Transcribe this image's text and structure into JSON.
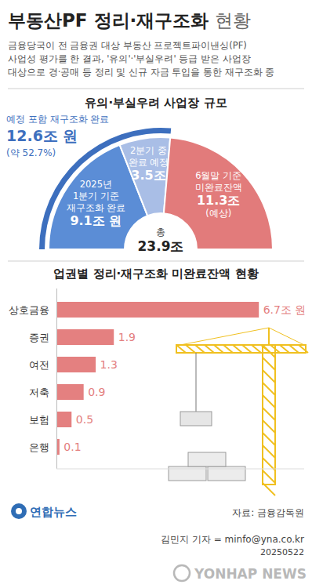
{
  "title": "부동산PF 정리·재구조화 현황",
  "subtitle": "금융당국이 전 금융권 대상 부동산 프로젝트파이낸싱(PF)\n사업성 평가를 한 결과, '유의'·'부실우려' 등급 받은 사업장\n대상으로 경·공매 등 정리 및 신규 자금 투입을 통한 재구조화 중",
  "chart_data": [
    {
      "type": "pie",
      "title": "유의·부실우려 사업장 규모",
      "categories": [
        "2025년\n1분기 기준\n재구조화 완료",
        "2분기 중\n완료 예정",
        "6월말 기준\n미완료잔액"
      ],
      "values": [
        9.1,
        3.5,
        11.3
      ],
      "value_labels": [
        "9.1조 원",
        "3.5조",
        "11.3조\n(예상)"
      ],
      "colors": [
        "#5b8dd6",
        "#a9bee6",
        "#e27b7b"
      ],
      "data_labels": true,
      "center_label": [
        "총",
        "23.9조"
      ],
      "annotations": [
        "예정 포함 재구조화 완료",
        "12.6조 원",
        "(약 52.7%)"
      ]
    },
    {
      "type": "bar",
      "orientation": "horizontal",
      "title": "업권별 정리·재구조화 미완료잔액 현황",
      "categories": [
        "상호금융",
        "증권",
        "여전",
        "저축",
        "보험",
        "은행"
      ],
      "values": [
        6.7,
        1.9,
        1.3,
        0.9,
        0.5,
        0.1
      ],
      "value_labels": [
        "6.7조 원",
        "1.9",
        "1.3",
        "0.9",
        "0.5",
        "0.1"
      ],
      "color": "#e48080",
      "xlim": [
        0,
        8.2
      ],
      "xticks": [],
      "tick_labels": "y",
      "data_labels": true
    }
  ],
  "logo": "연합뉴스",
  "source": "자료: 금융감독원",
  "byline": "김민지 기자 = minfo@yna.co.kr",
  "date": "20250522",
  "watermark": "YONHAP NEWS"
}
